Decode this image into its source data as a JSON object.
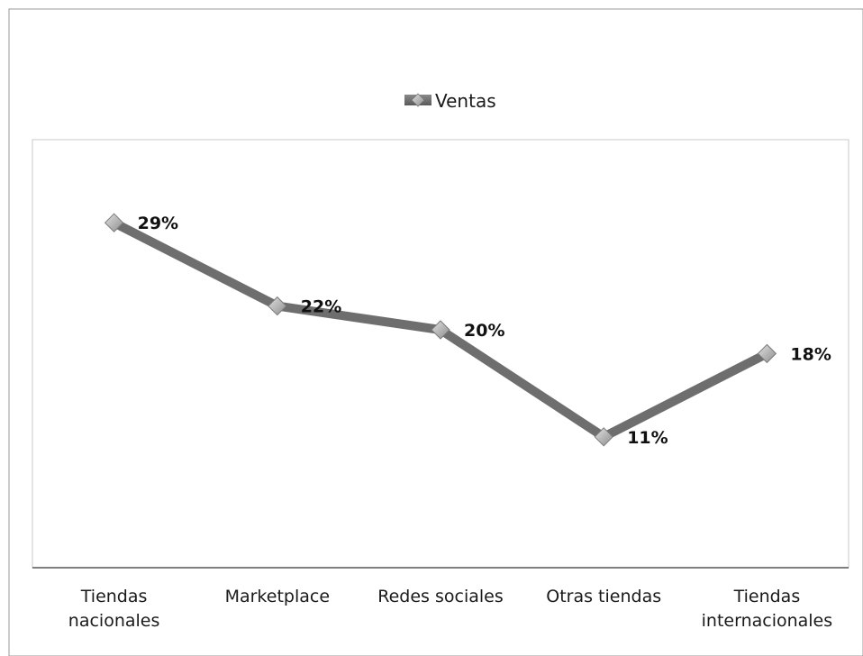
{
  "chart_data": {
    "type": "line",
    "title": "",
    "xlabel": "",
    "ylabel": "",
    "categories": [
      "Tiendas nacionales",
      "Marketplace",
      "Redes sociales",
      "Otras tiendas",
      "Tiendas internacionales"
    ],
    "category_lines": [
      [
        "Tiendas",
        "nacionales"
      ],
      [
        "Marketplace"
      ],
      [
        "Redes sociales"
      ],
      [
        "Otras tiendas"
      ],
      [
        "Tiendas",
        "internacionales"
      ]
    ],
    "series": [
      {
        "name": "Ventas",
        "values": [
          29,
          22,
          20,
          11,
          18
        ],
        "labels": [
          "29%",
          "22%",
          "20%",
          "11%",
          "18%"
        ]
      }
    ],
    "ylim": [
      0,
      35
    ],
    "grid": false,
    "legend_position": "top",
    "colors": {
      "line": "#6e6e6e",
      "marker": "#9a9a9a",
      "marker_highlight": "#d8d8d8",
      "axis": "#555555",
      "plot_border": "#c8c8c8",
      "frame_border": "#999999"
    }
  }
}
